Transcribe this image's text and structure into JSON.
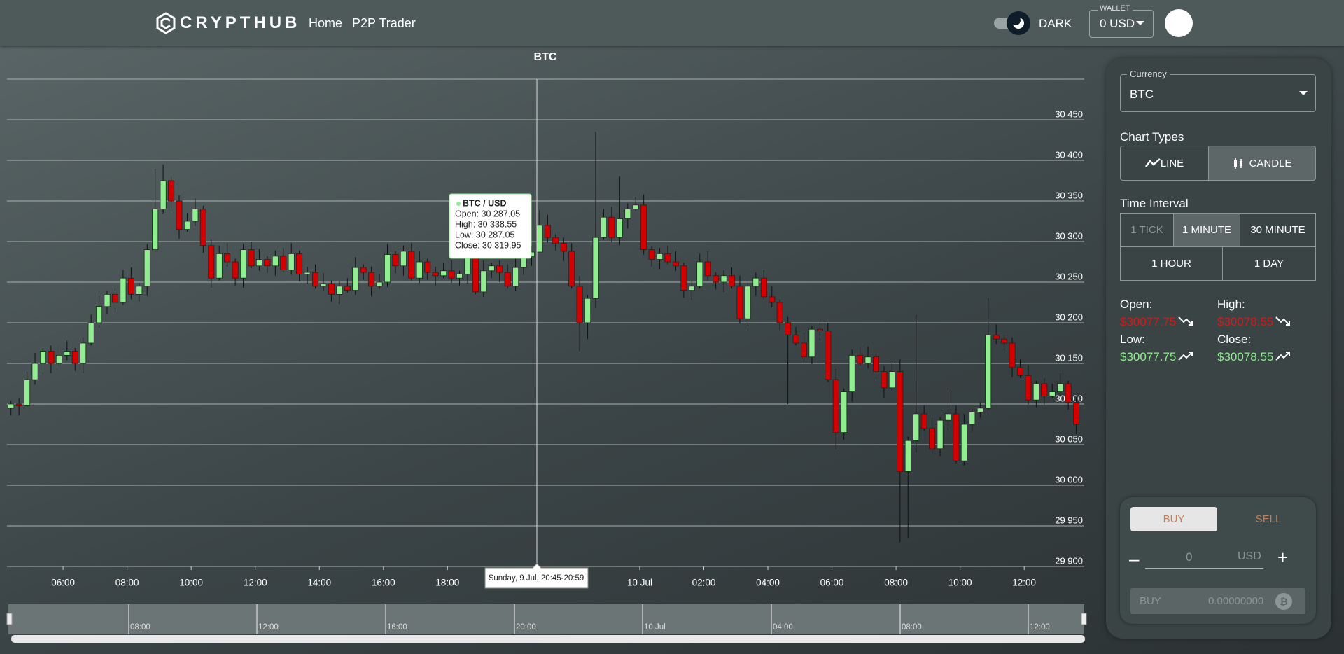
{
  "header": {
    "logo": "CRYPTHUB",
    "nav": [
      "Home",
      "P2P Trader"
    ],
    "theme": "DARK",
    "wallet_label": "WALLET",
    "wallet_value": "0 USD"
  },
  "chart_data": {
    "type": "candlestick",
    "title": "BTC",
    "x": [
      4.375,
      4.625,
      4.875,
      5.125,
      5.375,
      5.625,
      5.875,
      6.125,
      6.375,
      6.625,
      6.875,
      7.125,
      7.375,
      7.625,
      7.875,
      8.125,
      8.375,
      8.625,
      8.875,
      9.125,
      9.375,
      9.625,
      9.875,
      10.125,
      10.375,
      10.625,
      10.875,
      11.125,
      11.375,
      11.625,
      11.875,
      12.125,
      12.375,
      12.625,
      12.875,
      13.125,
      13.375,
      13.625,
      13.875,
      14.125,
      14.375,
      14.625,
      14.875,
      15.125,
      15.375,
      15.625,
      15.875,
      16.125,
      16.375,
      16.625,
      16.875,
      17.125,
      17.375,
      17.625,
      17.875,
      18.125,
      18.375,
      18.625,
      18.875,
      19.125,
      19.375,
      19.625,
      19.875,
      20.125,
      20.375,
      20.625,
      20.875,
      21.125,
      21.375,
      21.625,
      21.875,
      22.125,
      22.375,
      22.625,
      22.875,
      23.125,
      23.375,
      23.625,
      23.875,
      24.125,
      24.375,
      24.625,
      24.875,
      25.125,
      25.375,
      25.625,
      25.875,
      26.125,
      26.375,
      26.625,
      26.875,
      27.125,
      27.375,
      27.625,
      27.875,
      28.125,
      28.375,
      28.625,
      28.875,
      29.125,
      29.375,
      29.625,
      29.875,
      30.125,
      30.375,
      30.625,
      30.875,
      31.125,
      31.375,
      31.625,
      31.875,
      32.125,
      32.375,
      32.625,
      32.875,
      33.125,
      33.375,
      33.625,
      33.875,
      34.125,
      34.375,
      34.625,
      34.875,
      35.125,
      35.375,
      35.625,
      35.875,
      36.125,
      36.375,
      36.625,
      36.875,
      37.125,
      37.375,
      37.625
    ],
    "open": [
      30095,
      30100,
      30098,
      30130,
      30150,
      30165,
      30150,
      30160,
      30165,
      30150,
      30175,
      30200,
      30220,
      30235,
      30225,
      30255,
      30235,
      30245,
      30290,
      30340,
      30375,
      30350,
      30315,
      30325,
      30340,
      30295,
      30255,
      30285,
      30275,
      30255,
      30290,
      30270,
      30278,
      30270,
      30282,
      30265,
      30285,
      30260,
      30262,
      30245,
      30248,
      30235,
      30245,
      30240,
      30268,
      30262,
      30245,
      30250,
      30284,
      30270,
      30288,
      30255,
      30275,
      30262,
      30258,
      30264,
      30255,
      30260,
      30285,
      30238,
      30264,
      30270,
      30262,
      30245,
      30268,
      30282,
      30287.05,
      30319.95,
      30305,
      30298,
      30288,
      30245,
      30200,
      30230,
      30305,
      30330,
      30305,
      30328,
      30340,
      30345,
      30290,
      30278,
      30285,
      30275,
      30270,
      30240,
      30245,
      30275,
      30258,
      30250,
      30258,
      30245,
      30205,
      30245,
      30255,
      30232,
      30225,
      30200,
      30185,
      30175,
      30158,
      30192,
      30190,
      30130,
      30065,
      30115,
      30160,
      30150,
      30158,
      30140,
      30120,
      30140,
      30017,
      30055,
      30088,
      30070,
      30045,
      30080,
      30088,
      30030,
      30075,
      30090,
      30095,
      30185,
      30180,
      30175,
      30145,
      30135,
      30105,
      30125,
      30110,
      30115,
      30125,
      30102
    ],
    "high": [
      30104,
      30107,
      30140,
      30163,
      30169,
      30172,
      30170,
      30178,
      30169,
      30182,
      30210,
      30233,
      30239,
      30242,
      30265,
      30268,
      30249,
      30297,
      30390,
      30395,
      30379,
      30357,
      30335,
      30353,
      30344,
      30302,
      30295,
      30298,
      30279,
      30297,
      30300,
      30291,
      30282,
      30289,
      30292,
      30298,
      30289,
      30269,
      30272,
      30261,
      30252,
      30252,
      30255,
      30281,
      30272,
      30269,
      30260,
      30297,
      30288,
      30295,
      30298,
      30288,
      30279,
      30269,
      30274,
      30277,
      30264,
      30292,
      30295,
      30277,
      30274,
      30277,
      30272,
      30281,
      30286,
      30294.05,
      30338.55,
      30332.95,
      30309,
      30305,
      30298,
      30258,
      30234,
      30435,
      30340,
      30343,
      30380,
      30347,
      30355,
      30358,
      30294,
      30292,
      30295,
      30288,
      30274,
      30252,
      30285,
      30288,
      30262,
      30265,
      30268,
      30258,
      30249,
      30262,
      30265,
      30245,
      30229,
      30207,
      30195,
      30188,
      30196,
      30199,
      30200,
      30143,
      30119,
      30167,
      30170,
      30171,
      30162,
      30147,
      30150,
      30155,
      30060,
      30210,
      30098,
      30083,
      30084,
      30120,
      30098,
      30088,
      30094,
      30102,
      30230,
      30198,
      30184,
      30182,
      30155,
      30148,
      30129,
      30132,
      30125,
      30138,
      30129,
      30109
    ],
    "low": [
      30086,
      30086,
      30095,
      30124,
      30141,
      30138,
      30147,
      30154,
      30141,
      30138,
      30172,
      30194,
      30211,
      30213,
      30222,
      30229,
      30226,
      30233,
      30287,
      30334,
      30341,
      30303,
      30312,
      30319,
      30286,
      30243,
      30252,
      30269,
      30246,
      30243,
      30267,
      30264,
      30261,
      30258,
      30262,
      30259,
      30251,
      30248,
      30242,
      30239,
      30226,
      30223,
      30237,
      30234,
      30253,
      30233,
      30242,
      30244,
      30261,
      30258,
      30252,
      30249,
      30253,
      30246,
      30255,
      30249,
      30246,
      30248,
      30235,
      30232,
      30255,
      30250,
      30242,
      30239,
      30259,
      30270,
      30287.05,
      30299,
      30289,
      30276,
      30242,
      30165,
      30180,
      30218,
      30302,
      30299,
      30296,
      30316,
      30337,
      30284,
      30269,
      30266,
      30272,
      30264,
      30231,
      30228,
      30242,
      30252,
      30241,
      30238,
      30242,
      30199,
      30196,
      30233,
      30229,
      30219,
      30191,
      30100,
      30172,
      30152,
      30149,
      30178,
      30127,
      30045,
      30056,
      30103,
      30147,
      30144,
      30131,
      30108,
      30117,
      29930,
      29935,
      30040,
      30067,
      30039,
      30036,
      30068,
      30027,
      30024,
      30066,
      30083,
      30092,
      30174,
      30166,
      30133,
      30132,
      30099,
      30096,
      30098,
      30107,
      30109,
      30093,
      30063
    ],
    "close": [
      30100,
      30098,
      30130,
      30150,
      30165,
      30150,
      30160,
      30165,
      30150,
      30175,
      30200,
      30220,
      30235,
      30225,
      30255,
      30235,
      30245,
      30290,
      30340,
      30375,
      30350,
      30315,
      30325,
      30340,
      30295,
      30255,
      30285,
      30275,
      30255,
      30290,
      30270,
      30278,
      30270,
      30282,
      30265,
      30285,
      30260,
      30262,
      30245,
      30248,
      30235,
      30245,
      30240,
      30268,
      30262,
      30245,
      30250,
      30284,
      30270,
      30288,
      30255,
      30275,
      30262,
      30258,
      30264,
      30255,
      30260,
      30285,
      30238,
      30264,
      30270,
      30262,
      30245,
      30268,
      30282,
      30287.05,
      30319.95,
      30305,
      30298,
      30288,
      30245,
      30200,
      30230,
      30305,
      30330,
      30305,
      30328,
      30340,
      30345,
      30290,
      30278,
      30285,
      30275,
      30270,
      30240,
      30245,
      30275,
      30258,
      30250,
      30258,
      30245,
      30205,
      30245,
      30255,
      30232,
      30225,
      30200,
      30185,
      30175,
      30158,
      30192,
      30190,
      30130,
      30065,
      30115,
      30160,
      30150,
      30158,
      30140,
      30120,
      30140,
      30017,
      30055,
      30088,
      30070,
      30045,
      30080,
      30088,
      30030,
      30075,
      30090,
      30095,
      30185,
      30180,
      30175,
      30145,
      30135,
      30105,
      30125,
      30110,
      30115,
      30125,
      30102,
      30075
    ],
    "up_color": "#90ee90",
    "down_color": "#d40000",
    "xlim": [
      4.25,
      37.875
    ],
    "ylim": [
      29900,
      30500
    ],
    "xticks": [
      {
        "value": 6,
        "label": "06:00"
      },
      {
        "value": 8,
        "label": "08:00"
      },
      {
        "value": 10,
        "label": "10:00"
      },
      {
        "value": 12,
        "label": "12:00"
      },
      {
        "value": 14,
        "label": "14:00"
      },
      {
        "value": 16,
        "label": "16:00"
      },
      {
        "value": 18,
        "label": "18:00"
      },
      {
        "value": 24,
        "label": "10 Jul"
      },
      {
        "value": 26,
        "label": "02:00"
      },
      {
        "value": 28,
        "label": "04:00"
      },
      {
        "value": 30,
        "label": "06:00"
      },
      {
        "value": 32,
        "label": "08:00"
      },
      {
        "value": 34,
        "label": "10:00"
      },
      {
        "value": 36,
        "label": "12:00"
      }
    ],
    "yticks": [
      {
        "value": 29900,
        "label": "29 900"
      },
      {
        "value": 29950,
        "label": "29 950"
      },
      {
        "value": 30000,
        "label": "30 000"
      },
      {
        "value": 30050,
        "label": "30 050"
      },
      {
        "value": 30100,
        "label": "30 100"
      },
      {
        "value": 30150,
        "label": "30 150"
      },
      {
        "value": 30200,
        "label": "30 200"
      },
      {
        "value": 30250,
        "label": "30 250"
      },
      {
        "value": 30300,
        "label": "30 300"
      },
      {
        "value": 30350,
        "label": "30 350"
      },
      {
        "value": 30400,
        "label": "30 400"
      },
      {
        "value": 30450,
        "label": "30 450"
      }
    ],
    "grid": true,
    "tooltip": {
      "title": "BTC / USD",
      "lines": [
        "Open: 30 287.05",
        "High: 30 338.55",
        "Low: 30 287.05",
        "Close: 30 319.95"
      ]
    },
    "crosshair_label": "Sunday, 9 Jul, 20:45-20:59"
  },
  "navigator": {
    "labels": [
      "08:00",
      "12:00",
      "16:00",
      "20:00",
      "10 Jul",
      "04:00",
      "08:00",
      "12:00"
    ]
  },
  "panel": {
    "currency_label": "Currency",
    "currency": "BTC",
    "chart_types_label": "Chart Types",
    "chart_types": [
      "LINE",
      "CANDLE"
    ],
    "interval_label": "Time Interval",
    "intervals": [
      "1 TICK",
      "1 MINUTE",
      "30 MINUTE",
      "1 HOUR",
      "1 DAY"
    ],
    "stats": {
      "open_label": "Open:",
      "open": "$30077.75",
      "high_label": "High:",
      "high": "$30078.55",
      "low_label": "Low:",
      "low": "$30077.75",
      "close_label": "Close:",
      "close": "$30078.55"
    },
    "trade": {
      "buy_tab": "BUY",
      "sell_tab": "SELL",
      "amount": "0",
      "unit": "USD",
      "buy_button": "BUY",
      "buy_amount": "0.00000000"
    }
  }
}
